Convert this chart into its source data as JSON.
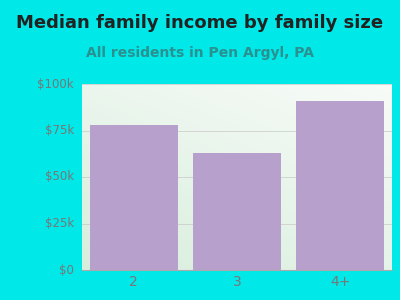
{
  "categories": [
    "2",
    "3",
    "4+"
  ],
  "values": [
    78000,
    63000,
    91000
  ],
  "bar_color": "#b8a0cc",
  "title": "Median family income by family size",
  "subtitle": "All residents in Pen Argyl, PA",
  "title_fontsize": 13,
  "subtitle_fontsize": 10,
  "title_color": "#222222",
  "subtitle_color": "#2a9090",
  "background_color": "#00e8e8",
  "ylim": [
    0,
    100000
  ],
  "yticks": [
    0,
    25000,
    50000,
    75000,
    100000
  ],
  "ytick_labels": [
    "$0",
    "$25k",
    "$50k",
    "$75k",
    "$100k"
  ],
  "grid_color": "#cccccc",
  "plot_grad_top": "#f5faf5",
  "plot_grad_bottom": "#e0f0e0",
  "tick_label_color": "#777777",
  "spine_color": "#aaaaaa"
}
